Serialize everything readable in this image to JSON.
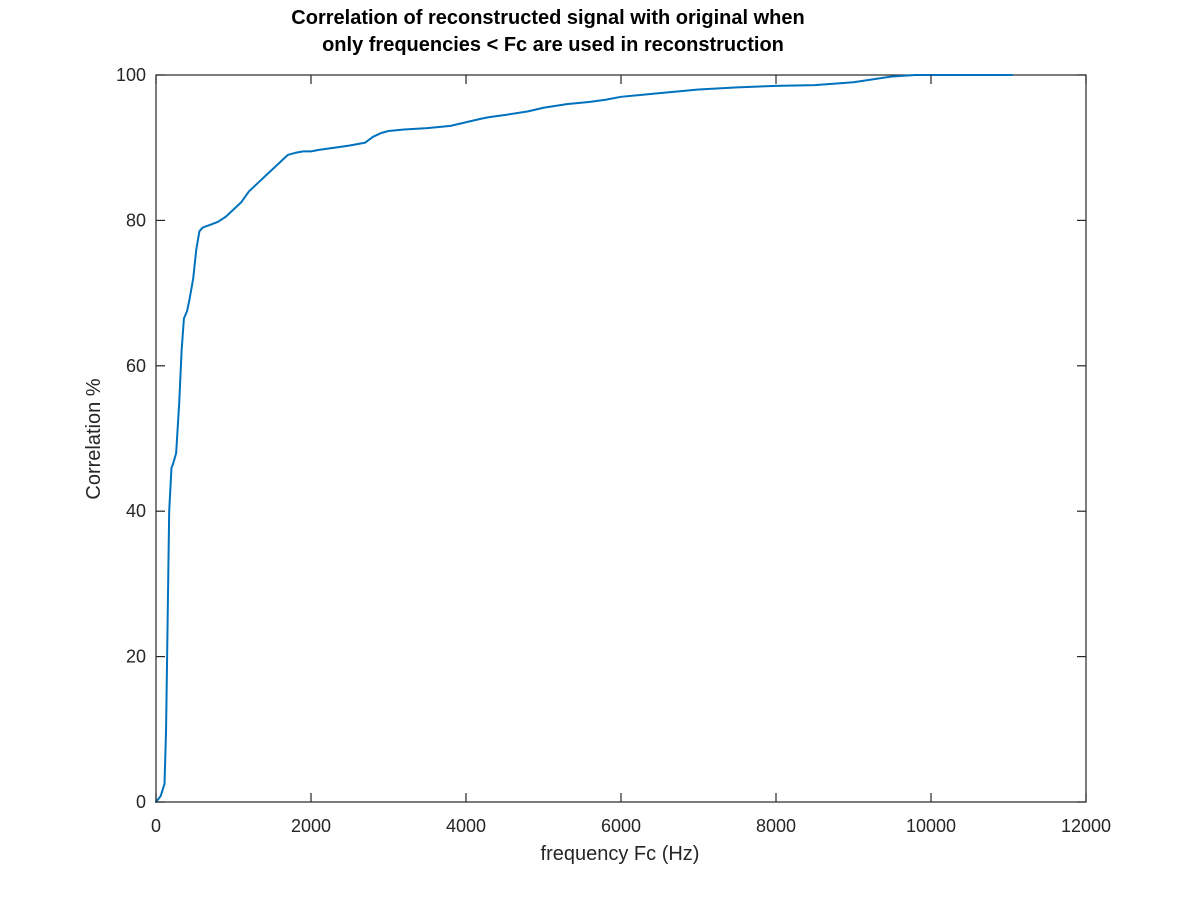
{
  "chart_data": {
    "type": "line",
    "title": [
      "Correlation of reconstructed signal with original when",
      "only frequencies < Fc are used in reconstruction"
    ],
    "xlabel": "frequency Fc (Hz)",
    "ylabel": "Correlation %",
    "xlim": [
      0,
      12000
    ],
    "ylim": [
      0,
      100
    ],
    "xticks": [
      0,
      2000,
      4000,
      6000,
      8000,
      10000,
      12000
    ],
    "yticks": [
      0,
      20,
      40,
      60,
      80,
      100
    ],
    "xtick_labels": [
      "0",
      "2000",
      "4000",
      "6000",
      "8000",
      "10000",
      "12000"
    ],
    "ytick_labels": [
      "0",
      "20",
      "40",
      "60",
      "80",
      "100"
    ],
    "grid": false,
    "box": true,
    "series": [
      {
        "color": "#0072bd",
        "x": [
          0,
          60,
          110,
          130,
          150,
          170,
          200,
          220,
          260,
          300,
          330,
          360,
          400,
          430,
          480,
          520,
          560,
          600,
          650,
          700,
          800,
          900,
          1000,
          1100,
          1200,
          1300,
          1400,
          1500,
          1600,
          1650,
          1700,
          1800,
          1900,
          2000,
          2100,
          2300,
          2500,
          2700,
          2800,
          2900,
          3000,
          3200,
          3500,
          3800,
          4000,
          4200,
          4300,
          4500,
          4800,
          5000,
          5300,
          5600,
          5800,
          6000,
          6500,
          7000,
          7500,
          8000,
          8500,
          9000,
          9500,
          9800,
          9950,
          10000,
          10500,
          11050
        ],
        "y": [
          0,
          0.8,
          2.5,
          10,
          25,
          40,
          46,
          46.5,
          48,
          55,
          62,
          66.5,
          67.5,
          69,
          72,
          76,
          78.5,
          79,
          79.2,
          79.4,
          79.8,
          80.5,
          81.5,
          82.5,
          84,
          85,
          86,
          87,
          88,
          88.5,
          89,
          89.3,
          89.5,
          89.5,
          89.7,
          90,
          90.3,
          90.7,
          91.5,
          92,
          92.3,
          92.5,
          92.7,
          93,
          93.5,
          94,
          94.2,
          94.5,
          95,
          95.5,
          96,
          96.3,
          96.6,
          97,
          97.5,
          98,
          98.3,
          98.5,
          98.6,
          99,
          99.8,
          100,
          100,
          100,
          100,
          100
        ]
      }
    ]
  }
}
